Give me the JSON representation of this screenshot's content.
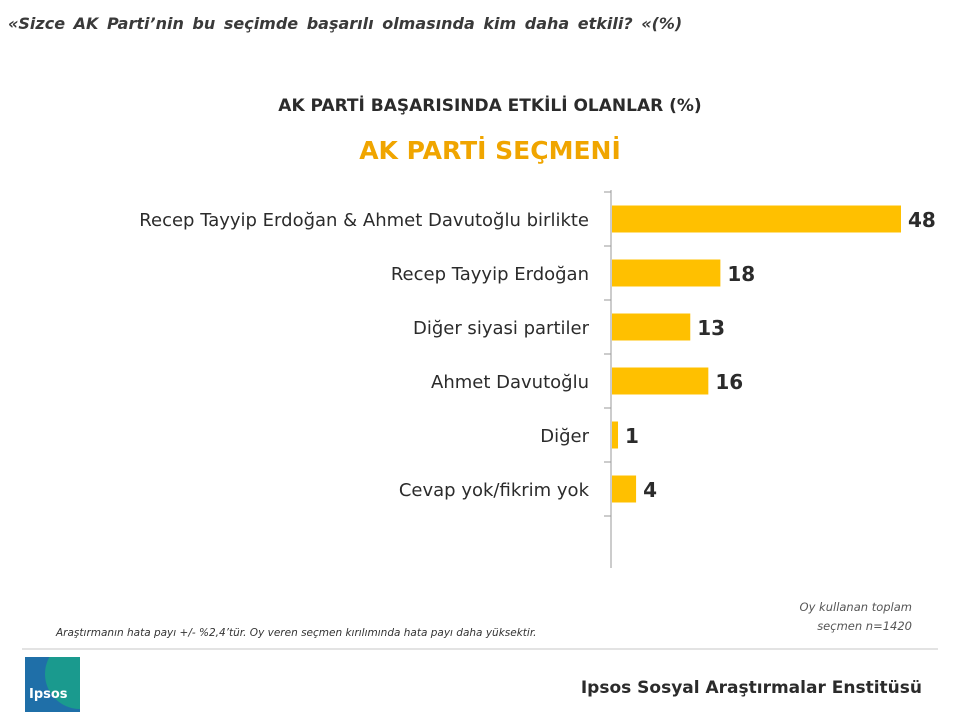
{
  "question": "«Sizce AK Parti’nin bu seçimde başarılı olmasında kim daha etkili?  «(%)",
  "base_note": [
    "Oy kullanan toplam",
    "seçmen n=1420"
  ],
  "footnote": "Araştırmanın hata payı +/- %2,4’tür. Oy veren seçmen kırılımında hata payı daha yüksektir.",
  "logo_text": "Ipsos",
  "institute": "Ipsos Sosyal Araştırmalar Enstitüsü",
  "colors": {
    "bar": "#ffc000",
    "subtitle": "#f0a500",
    "axis": "#9a9a9a"
  },
  "chart_data": {
    "type": "bar",
    "orientation": "horizontal",
    "title": "AK PARTİ BAŞARISINDA ETKİLİ OLANLAR (%)",
    "subtitle": "AK PARTİ SEÇMENİ",
    "categories": [
      "Recep Tayyip Erdoğan & Ahmet Davutoğlu birlikte",
      "Recep Tayyip Erdoğan",
      "Diğer siyasi partiler",
      "Ahmet Davutoğlu",
      "Diğer",
      "Cevap yok/fikrim yok"
    ],
    "values": [
      48,
      18,
      13,
      16,
      1,
      4
    ],
    "xlim": [
      0,
      50
    ],
    "grid": false,
    "data_labels": true
  }
}
